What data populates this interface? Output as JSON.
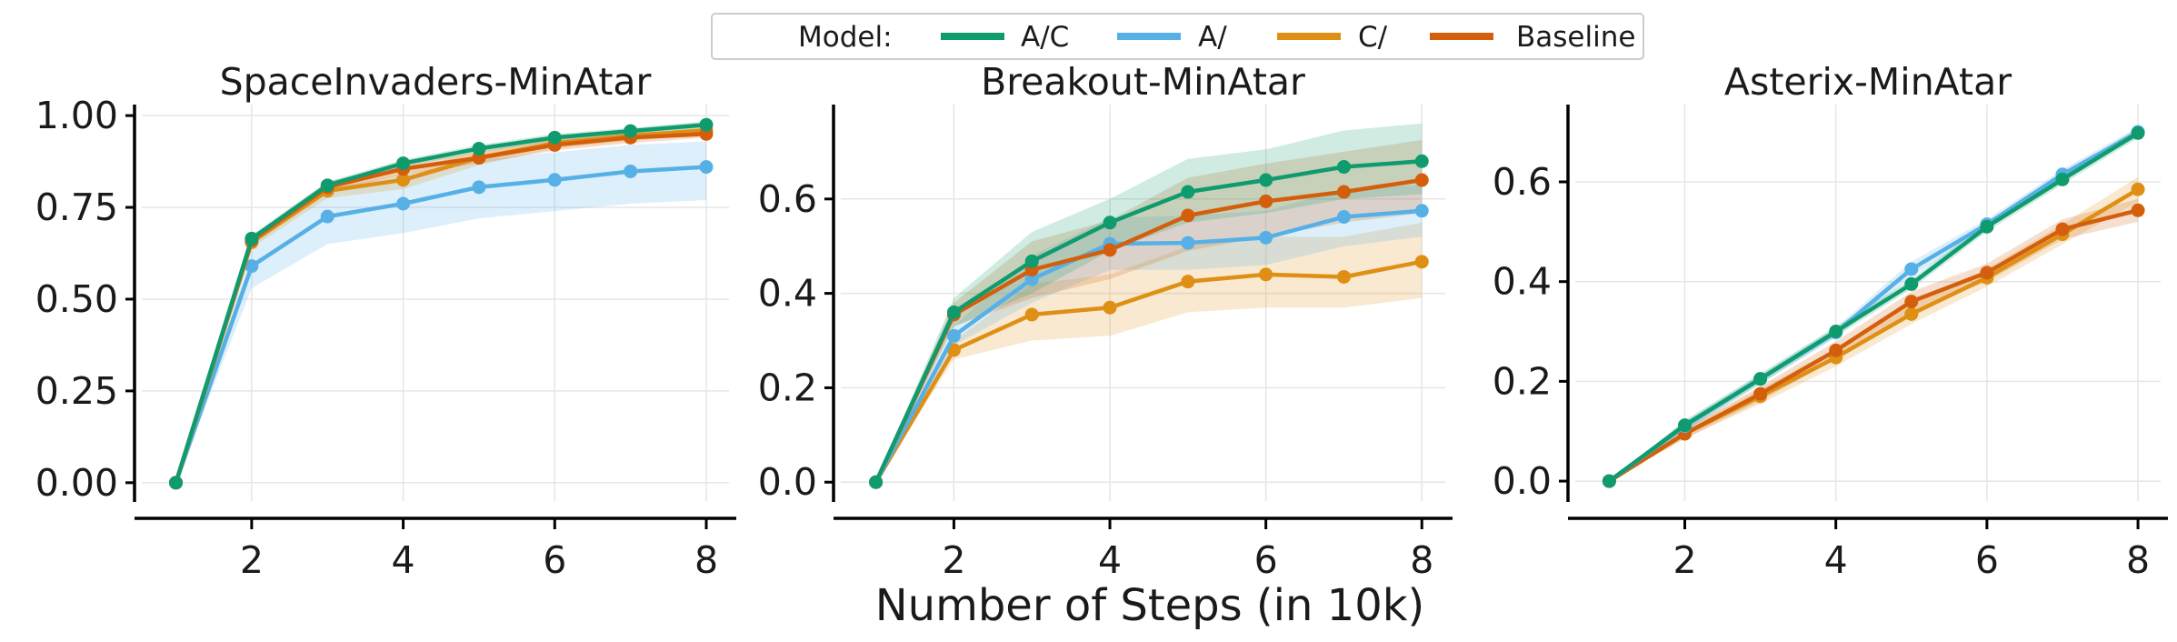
{
  "legend": {
    "title": "Model:",
    "entries": [
      {
        "label": "A/C",
        "color": "#109b6e"
      },
      {
        "label": "A/",
        "color": "#56b0e6"
      },
      {
        "label": "C/",
        "color": "#de8f14"
      },
      {
        "label": "Baseline",
        "color": "#d35f0c"
      }
    ]
  },
  "shared_xlabel": "Number of Steps (in 10k)",
  "chart_data": [
    {
      "type": "line",
      "title": "SpaceInvaders-MinAtar",
      "x": [
        1,
        2,
        3,
        4,
        5,
        6,
        7,
        8
      ],
      "xticks": [
        2,
        4,
        6,
        8
      ],
      "xlim": [
        0.55,
        8.3
      ],
      "ylim": [
        -0.05,
        1.03
      ],
      "yticks": [
        0.0,
        0.25,
        0.5,
        0.75,
        1.0
      ],
      "ytick_labels": [
        "0.00",
        "0.25",
        "0.50",
        "0.75",
        "1.00"
      ],
      "grid": true,
      "series": [
        {
          "name": "A/",
          "color": "#56b0e6",
          "values": [
            0.0,
            0.59,
            0.725,
            0.76,
            0.805,
            0.825,
            0.848,
            0.86
          ],
          "lower": [
            0.0,
            0.53,
            0.65,
            0.68,
            0.72,
            0.74,
            0.76,
            0.77
          ],
          "upper": [
            0.0,
            0.65,
            0.8,
            0.84,
            0.88,
            0.9,
            0.92,
            0.93
          ]
        },
        {
          "name": "C/",
          "color": "#de8f14",
          "values": [
            0.0,
            0.655,
            0.795,
            0.825,
            0.885,
            0.925,
            0.945,
            0.96
          ],
          "lower": [
            0.0,
            0.64,
            0.775,
            0.8,
            0.865,
            0.91,
            0.93,
            0.95
          ],
          "upper": [
            0.0,
            0.67,
            0.815,
            0.85,
            0.905,
            0.94,
            0.96,
            0.97
          ]
        },
        {
          "name": "Baseline",
          "color": "#d35f0c",
          "values": [
            0.0,
            0.66,
            0.805,
            0.855,
            0.885,
            0.92,
            0.94,
            0.95
          ],
          "lower": [
            0.0,
            0.65,
            0.79,
            0.84,
            0.87,
            0.905,
            0.925,
            0.94
          ],
          "upper": [
            0.0,
            0.67,
            0.82,
            0.87,
            0.9,
            0.935,
            0.955,
            0.96
          ]
        },
        {
          "name": "A/C",
          "color": "#109b6e",
          "values": [
            0.0,
            0.665,
            0.81,
            0.87,
            0.91,
            0.94,
            0.958,
            0.975
          ],
          "lower": [
            0.0,
            0.655,
            0.8,
            0.86,
            0.9,
            0.93,
            0.95,
            0.965
          ],
          "upper": [
            0.0,
            0.675,
            0.82,
            0.88,
            0.92,
            0.95,
            0.966,
            0.985
          ]
        }
      ]
    },
    {
      "type": "line",
      "title": "Breakout-MinAtar",
      "x": [
        1,
        2,
        3,
        4,
        5,
        6,
        7,
        8
      ],
      "xticks": [
        2,
        4,
        6,
        8
      ],
      "xlim": [
        0.55,
        8.3
      ],
      "ylim": [
        -0.04,
        0.8
      ],
      "yticks": [
        0.0,
        0.2,
        0.4,
        0.6
      ],
      "ytick_labels": [
        "0.0",
        "0.2",
        "0.4",
        "0.6"
      ],
      "grid": true,
      "series": [
        {
          "name": "C/",
          "color": "#de8f14",
          "values": [
            0.0,
            0.28,
            0.355,
            0.37,
            0.425,
            0.44,
            0.435,
            0.467
          ],
          "lower": [
            0.0,
            0.26,
            0.3,
            0.31,
            0.36,
            0.37,
            0.37,
            0.39
          ],
          "upper": [
            0.0,
            0.3,
            0.42,
            0.44,
            0.5,
            0.52,
            0.52,
            0.55
          ]
        },
        {
          "name": "A/",
          "color": "#56b0e6",
          "values": [
            0.0,
            0.31,
            0.43,
            0.505,
            0.507,
            0.518,
            0.562,
            0.575
          ],
          "lower": [
            0.0,
            0.29,
            0.38,
            0.45,
            0.45,
            0.46,
            0.5,
            0.52
          ],
          "upper": [
            0.0,
            0.33,
            0.48,
            0.56,
            0.565,
            0.575,
            0.62,
            0.63
          ]
        },
        {
          "name": "Baseline",
          "color": "#d35f0c",
          "values": [
            0.0,
            0.355,
            0.45,
            0.492,
            0.565,
            0.595,
            0.615,
            0.64
          ],
          "lower": [
            0.0,
            0.33,
            0.39,
            0.43,
            0.49,
            0.52,
            0.55,
            0.57
          ],
          "upper": [
            0.0,
            0.38,
            0.51,
            0.555,
            0.645,
            0.675,
            0.7,
            0.725
          ]
        },
        {
          "name": "A/C",
          "color": "#109b6e",
          "values": [
            0.0,
            0.36,
            0.468,
            0.55,
            0.615,
            0.64,
            0.668,
            0.68
          ],
          "lower": [
            0.0,
            0.33,
            0.4,
            0.49,
            0.55,
            0.57,
            0.6,
            0.61
          ],
          "upper": [
            0.0,
            0.39,
            0.53,
            0.6,
            0.685,
            0.705,
            0.745,
            0.76
          ]
        }
      ]
    },
    {
      "type": "line",
      "title": "Asterix-MinAtar",
      "x": [
        1,
        2,
        3,
        4,
        5,
        6,
        7,
        8
      ],
      "xticks": [
        2,
        4,
        6,
        8
      ],
      "xlim": [
        0.55,
        8.3
      ],
      "ylim": [
        -0.04,
        0.755
      ],
      "yticks": [
        0.0,
        0.2,
        0.4,
        0.6
      ],
      "ytick_labels": [
        "0.0",
        "0.2",
        "0.4",
        "0.6"
      ],
      "grid": true,
      "series": [
        {
          "name": "C/",
          "color": "#de8f14",
          "values": [
            0.0,
            0.095,
            0.17,
            0.248,
            0.335,
            0.408,
            0.495,
            0.585
          ],
          "lower": [
            0.0,
            0.085,
            0.155,
            0.23,
            0.315,
            0.39,
            0.475,
            0.56
          ],
          "upper": [
            0.0,
            0.105,
            0.185,
            0.266,
            0.355,
            0.426,
            0.515,
            0.61
          ]
        },
        {
          "name": "Baseline",
          "color": "#d35f0c",
          "values": [
            0.0,
            0.095,
            0.175,
            0.262,
            0.36,
            0.418,
            0.505,
            0.543
          ],
          "lower": [
            0.0,
            0.085,
            0.16,
            0.245,
            0.34,
            0.4,
            0.485,
            0.52
          ],
          "upper": [
            0.0,
            0.105,
            0.19,
            0.28,
            0.38,
            0.436,
            0.525,
            0.566
          ]
        },
        {
          "name": "A/",
          "color": "#56b0e6",
          "values": [
            0.0,
            0.11,
            0.205,
            0.298,
            0.425,
            0.515,
            0.615,
            0.7
          ],
          "lower": [
            0.0,
            0.1,
            0.195,
            0.288,
            0.41,
            0.505,
            0.605,
            0.69
          ],
          "upper": [
            0.0,
            0.12,
            0.215,
            0.308,
            0.44,
            0.525,
            0.625,
            0.71
          ]
        },
        {
          "name": "A/C",
          "color": "#109b6e",
          "values": [
            0.0,
            0.112,
            0.205,
            0.3,
            0.395,
            0.51,
            0.605,
            0.698
          ],
          "lower": [
            0.0,
            0.102,
            0.195,
            0.29,
            0.385,
            0.5,
            0.595,
            0.688
          ],
          "upper": [
            0.0,
            0.122,
            0.215,
            0.31,
            0.405,
            0.52,
            0.615,
            0.708
          ]
        }
      ]
    }
  ]
}
